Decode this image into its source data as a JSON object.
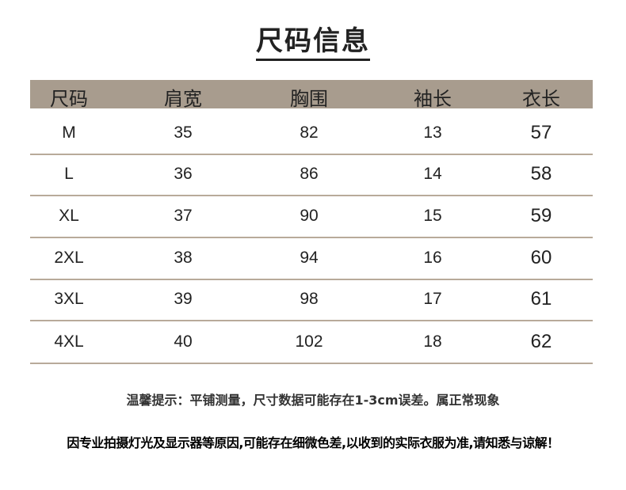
{
  "title": "尺码信息",
  "headers": [
    "尺码",
    "肩宽",
    "胸围",
    "袖长",
    "衣长"
  ],
  "rows": [
    [
      "M",
      "35",
      "82",
      "13",
      "57"
    ],
    [
      "L",
      "36",
      "86",
      "14",
      "58"
    ],
    [
      "XL",
      "37",
      "90",
      "15",
      "59"
    ],
    [
      "2XL",
      "38",
      "94",
      "16",
      "60"
    ],
    [
      "3XL",
      "39",
      "98",
      "17",
      "61"
    ],
    [
      "4XL",
      "40",
      "102",
      "18",
      "62"
    ]
  ],
  "note": "温馨提示：平铺测量，尺寸数据可能存在1-3cm误差。属正常现象",
  "disclaimer": "因专业拍摄灯光及显示器等原因,可能存在细微色差,以收到的实际衣服为准,请知悉与谅解！",
  "colors": {
    "header_bg": "#a89c8e",
    "row_line": "#b8aa9a"
  }
}
